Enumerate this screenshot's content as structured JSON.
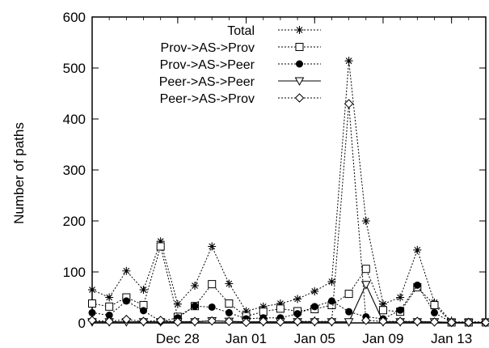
{
  "chart_data": {
    "type": "line",
    "title": "",
    "xlabel": "",
    "ylabel": "Number of paths",
    "ylim": [
      0,
      600
    ],
    "yticks": [
      0,
      100,
      200,
      300,
      400,
      500,
      600
    ],
    "xlim": [
      "2008-12-23",
      "2009-01-15"
    ],
    "xticks": [
      "Dec 28",
      "Jan 01",
      "Jan 05",
      "Jan 09",
      "Jan 13"
    ],
    "xtick_dates": [
      "2008-12-28",
      "2009-01-01",
      "2009-01-05",
      "2009-01-09",
      "2009-01-13"
    ],
    "x": [
      "2008-12-23",
      "2008-12-24",
      "2008-12-25",
      "2008-12-26",
      "2008-12-27",
      "2008-12-28",
      "2008-12-29",
      "2008-12-30",
      "2008-12-31",
      "2009-01-01",
      "2009-01-02",
      "2009-01-03",
      "2009-01-04",
      "2009-01-05",
      "2009-01-06",
      "2009-01-07",
      "2009-01-08",
      "2009-01-09",
      "2009-01-10",
      "2009-01-11",
      "2009-01-12",
      "2009-01-13",
      "2009-01-14",
      "2009-01-15"
    ],
    "grid": false,
    "legend_position": "top-left",
    "series": [
      {
        "name": "Total",
        "marker": "asterisk",
        "line": "dotted",
        "values": [
          65,
          50,
          102,
          65,
          160,
          37,
          73,
          150,
          77,
          23,
          32,
          38,
          47,
          62,
          81,
          514,
          200,
          37,
          50,
          143,
          40,
          2,
          2,
          2
        ]
      },
      {
        "name": "Prov->AS->Prov",
        "marker": "square-open",
        "line": "dotted",
        "values": [
          38,
          32,
          50,
          35,
          150,
          12,
          33,
          76,
          38,
          13,
          22,
          28,
          23,
          27,
          35,
          57,
          106,
          25,
          22,
          70,
          35,
          1,
          1,
          1
        ]
      },
      {
        "name": "Prov->AS->Peer",
        "marker": "circle-filled",
        "line": "dotted",
        "values": [
          20,
          15,
          43,
          24,
          3,
          10,
          33,
          31,
          20,
          8,
          10,
          10,
          18,
          32,
          43,
          22,
          12,
          8,
          25,
          74,
          20,
          1,
          1,
          1
        ]
      },
      {
        "name": "Peer->AS->Peer",
        "marker": "triangle-down-open",
        "line": "solid",
        "values": [
          2,
          2,
          2,
          2,
          2,
          2,
          2,
          4,
          3,
          2,
          2,
          2,
          2,
          2,
          2,
          2,
          75,
          2,
          2,
          2,
          2,
          1,
          1,
          1
        ]
      },
      {
        "name": "Peer->AS->Prov",
        "marker": "diamond-open",
        "line": "dotted",
        "values": [
          5,
          3,
          7,
          3,
          5,
          2,
          3,
          4,
          3,
          1,
          3,
          2,
          3,
          3,
          3,
          430,
          5,
          3,
          3,
          3,
          2,
          1,
          1,
          1
        ]
      }
    ]
  }
}
